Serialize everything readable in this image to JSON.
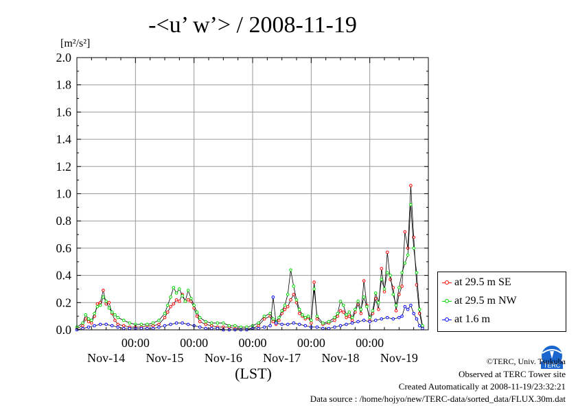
{
  "chart_data": {
    "type": "line",
    "title": "-<u’ w’> / 2008-11-19",
    "ylabel_unit": "[m²/s²]",
    "xlabel": "(LST)",
    "ylim": [
      0,
      2.0
    ],
    "yticks": [
      "0.0",
      "0.2",
      "0.4",
      "0.6",
      "0.8",
      "1.0",
      "1.2",
      "1.4",
      "1.6",
      "1.8",
      "2.0"
    ],
    "xlim": [
      0,
      6
    ],
    "xtick_times": [
      "00:00",
      "00:00",
      "00:00",
      "00:00",
      "00:00"
    ],
    "day_labels": [
      "Nov-14",
      "Nov-15",
      "Nov-16",
      "Nov-17",
      "Nov-18",
      "Nov-19"
    ],
    "grid": true,
    "legend_position": "right",
    "series": [
      {
        "name": "at 29.5 m SE",
        "color": "#ff0000",
        "points": [
          [
            0.0,
            0.01
          ],
          [
            0.1,
            0.03
          ],
          [
            0.15,
            0.08
          ],
          [
            0.2,
            0.06
          ],
          [
            0.25,
            0.05
          ],
          [
            0.3,
            0.1
          ],
          [
            0.35,
            0.19
          ],
          [
            0.4,
            0.2
          ],
          [
            0.45,
            0.29
          ],
          [
            0.5,
            0.19
          ],
          [
            0.55,
            0.2
          ],
          [
            0.6,
            0.12
          ],
          [
            0.65,
            0.07
          ],
          [
            0.7,
            0.04
          ],
          [
            0.8,
            0.03
          ],
          [
            0.9,
            0.02
          ],
          [
            1.0,
            0.02
          ],
          [
            1.1,
            0.02
          ],
          [
            1.2,
            0.03
          ],
          [
            1.3,
            0.03
          ],
          [
            1.4,
            0.04
          ],
          [
            1.5,
            0.09
          ],
          [
            1.55,
            0.13
          ],
          [
            1.6,
            0.17
          ],
          [
            1.65,
            0.19
          ],
          [
            1.7,
            0.22
          ],
          [
            1.75,
            0.21
          ],
          [
            1.8,
            0.26
          ],
          [
            1.85,
            0.21
          ],
          [
            1.9,
            0.22
          ],
          [
            1.95,
            0.21
          ],
          [
            2.0,
            0.16
          ],
          [
            2.05,
            0.1
          ],
          [
            2.1,
            0.06
          ],
          [
            2.2,
            0.04
          ],
          [
            2.3,
            0.03
          ],
          [
            2.4,
            0.02
          ],
          [
            2.5,
            0.02
          ],
          [
            2.6,
            0.02
          ],
          [
            2.7,
            0.01
          ],
          [
            2.8,
            0.01
          ],
          [
            2.9,
            0.01
          ],
          [
            3.0,
            0.01
          ],
          [
            3.1,
            0.03
          ],
          [
            3.2,
            0.08
          ],
          [
            3.3,
            0.1
          ],
          [
            3.35,
            0.06
          ],
          [
            3.4,
            0.04
          ],
          [
            3.45,
            0.07
          ],
          [
            3.5,
            0.12
          ],
          [
            3.55,
            0.15
          ],
          [
            3.6,
            0.17
          ],
          [
            3.65,
            0.22
          ],
          [
            3.7,
            0.26
          ],
          [
            3.75,
            0.2
          ],
          [
            3.8,
            0.12
          ],
          [
            3.85,
            0.1
          ],
          [
            3.9,
            0.08
          ],
          [
            3.95,
            0.09
          ],
          [
            4.0,
            0.05
          ],
          [
            4.05,
            0.35
          ],
          [
            4.1,
            0.08
          ],
          [
            4.2,
            0.04
          ],
          [
            4.3,
            0.05
          ],
          [
            4.4,
            0.07
          ],
          [
            4.45,
            0.1
          ],
          [
            4.5,
            0.14
          ],
          [
            4.55,
            0.13
          ],
          [
            4.6,
            0.09
          ],
          [
            4.65,
            0.1
          ],
          [
            4.7,
            0.07
          ],
          [
            4.75,
            0.13
          ],
          [
            4.8,
            0.19
          ],
          [
            4.85,
            0.12
          ],
          [
            4.9,
            0.36
          ],
          [
            4.95,
            0.18
          ],
          [
            5.0,
            0.07
          ],
          [
            5.05,
            0.12
          ],
          [
            5.1,
            0.23
          ],
          [
            5.15,
            0.15
          ],
          [
            5.2,
            0.45
          ],
          [
            5.25,
            0.28
          ],
          [
            5.3,
            0.57
          ],
          [
            5.35,
            0.37
          ],
          [
            5.4,
            0.31
          ],
          [
            5.45,
            0.14
          ],
          [
            5.5,
            0.26
          ],
          [
            5.55,
            0.32
          ],
          [
            5.6,
            0.72
          ],
          [
            5.65,
            0.6
          ],
          [
            5.7,
            1.06
          ],
          [
            5.75,
            0.68
          ],
          [
            5.8,
            0.33
          ],
          [
            5.85,
            0.12
          ],
          [
            5.9,
            0.02
          ]
        ]
      },
      {
        "name": "at 29.5 m NW",
        "color": "#00dd00",
        "points": [
          [
            0.0,
            0.02
          ],
          [
            0.1,
            0.05
          ],
          [
            0.15,
            0.11
          ],
          [
            0.2,
            0.08
          ],
          [
            0.25,
            0.07
          ],
          [
            0.3,
            0.12
          ],
          [
            0.35,
            0.17
          ],
          [
            0.4,
            0.18
          ],
          [
            0.45,
            0.24
          ],
          [
            0.5,
            0.21
          ],
          [
            0.55,
            0.16
          ],
          [
            0.6,
            0.13
          ],
          [
            0.65,
            0.11
          ],
          [
            0.7,
            0.09
          ],
          [
            0.8,
            0.07
          ],
          [
            0.9,
            0.05
          ],
          [
            1.0,
            0.04
          ],
          [
            1.1,
            0.04
          ],
          [
            1.2,
            0.04
          ],
          [
            1.3,
            0.05
          ],
          [
            1.4,
            0.07
          ],
          [
            1.5,
            0.12
          ],
          [
            1.55,
            0.18
          ],
          [
            1.6,
            0.24
          ],
          [
            1.65,
            0.31
          ],
          [
            1.7,
            0.27
          ],
          [
            1.75,
            0.3
          ],
          [
            1.8,
            0.25
          ],
          [
            1.85,
            0.21
          ],
          [
            1.9,
            0.29
          ],
          [
            1.95,
            0.23
          ],
          [
            2.0,
            0.18
          ],
          [
            2.05,
            0.13
          ],
          [
            2.1,
            0.09
          ],
          [
            2.2,
            0.06
          ],
          [
            2.3,
            0.05
          ],
          [
            2.4,
            0.05
          ],
          [
            2.5,
            0.05
          ],
          [
            2.6,
            0.03
          ],
          [
            2.7,
            0.03
          ],
          [
            2.8,
            0.02
          ],
          [
            2.9,
            0.02
          ],
          [
            3.0,
            0.03
          ],
          [
            3.1,
            0.05
          ],
          [
            3.2,
            0.1
          ],
          [
            3.3,
            0.12
          ],
          [
            3.35,
            0.08
          ],
          [
            3.4,
            0.06
          ],
          [
            3.45,
            0.09
          ],
          [
            3.5,
            0.14
          ],
          [
            3.55,
            0.18
          ],
          [
            3.6,
            0.26
          ],
          [
            3.65,
            0.44
          ],
          [
            3.7,
            0.32
          ],
          [
            3.75,
            0.22
          ],
          [
            3.8,
            0.15
          ],
          [
            3.85,
            0.11
          ],
          [
            3.9,
            0.09
          ],
          [
            3.95,
            0.1
          ],
          [
            4.0,
            0.07
          ],
          [
            4.05,
            0.3
          ],
          [
            4.1,
            0.1
          ],
          [
            4.2,
            0.05
          ],
          [
            4.3,
            0.06
          ],
          [
            4.4,
            0.09
          ],
          [
            4.45,
            0.12
          ],
          [
            4.5,
            0.21
          ],
          [
            4.55,
            0.18
          ],
          [
            4.6,
            0.11
          ],
          [
            4.65,
            0.13
          ],
          [
            4.7,
            0.09
          ],
          [
            4.75,
            0.15
          ],
          [
            4.8,
            0.21
          ],
          [
            4.85,
            0.15
          ],
          [
            4.9,
            0.24
          ],
          [
            4.95,
            0.17
          ],
          [
            5.0,
            0.09
          ],
          [
            5.05,
            0.14
          ],
          [
            5.1,
            0.27
          ],
          [
            5.15,
            0.2
          ],
          [
            5.2,
            0.37
          ],
          [
            5.25,
            0.3
          ],
          [
            5.3,
            0.42
          ],
          [
            5.35,
            0.4
          ],
          [
            5.4,
            0.26
          ],
          [
            5.45,
            0.18
          ],
          [
            5.5,
            0.31
          ],
          [
            5.55,
            0.42
          ],
          [
            5.6,
            0.49
          ],
          [
            5.65,
            0.55
          ],
          [
            5.7,
            0.92
          ],
          [
            5.75,
            0.6
          ],
          [
            5.8,
            0.42
          ],
          [
            5.85,
            0.15
          ],
          [
            5.9,
            0.03
          ]
        ]
      },
      {
        "name": "at 1.6 m",
        "color": "#0000ff",
        "points": [
          [
            0.0,
            0.0
          ],
          [
            0.1,
            0.01
          ],
          [
            0.2,
            0.02
          ],
          [
            0.3,
            0.03
          ],
          [
            0.4,
            0.04
          ],
          [
            0.5,
            0.04
          ],
          [
            0.6,
            0.03
          ],
          [
            0.7,
            0.02
          ],
          [
            0.8,
            0.01
          ],
          [
            0.9,
            0.01
          ],
          [
            1.0,
            0.01
          ],
          [
            1.1,
            0.01
          ],
          [
            1.2,
            0.01
          ],
          [
            1.3,
            0.01
          ],
          [
            1.4,
            0.02
          ],
          [
            1.5,
            0.03
          ],
          [
            1.6,
            0.04
          ],
          [
            1.7,
            0.05
          ],
          [
            1.8,
            0.05
          ],
          [
            1.9,
            0.04
          ],
          [
            2.0,
            0.03
          ],
          [
            2.1,
            0.02
          ],
          [
            2.2,
            0.01
          ],
          [
            2.3,
            0.01
          ],
          [
            2.4,
            0.01
          ],
          [
            2.5,
            0.0
          ],
          [
            2.6,
            0.0
          ],
          [
            2.7,
            0.0
          ],
          [
            2.8,
            0.0
          ],
          [
            2.9,
            0.0
          ],
          [
            3.0,
            0.01
          ],
          [
            3.1,
            0.01
          ],
          [
            3.2,
            0.02
          ],
          [
            3.3,
            0.03
          ],
          [
            3.35,
            0.24
          ],
          [
            3.4,
            0.05
          ],
          [
            3.5,
            0.04
          ],
          [
            3.6,
            0.04
          ],
          [
            3.7,
            0.05
          ],
          [
            3.8,
            0.04
          ],
          [
            3.9,
            0.03
          ],
          [
            4.0,
            0.02
          ],
          [
            4.1,
            0.02
          ],
          [
            4.2,
            0.01
          ],
          [
            4.3,
            0.01
          ],
          [
            4.4,
            0.02
          ],
          [
            4.5,
            0.03
          ],
          [
            4.6,
            0.04
          ],
          [
            4.7,
            0.05
          ],
          [
            4.8,
            0.06
          ],
          [
            4.9,
            0.07
          ],
          [
            5.0,
            0.06
          ],
          [
            5.1,
            0.07
          ],
          [
            5.2,
            0.08
          ],
          [
            5.3,
            0.09
          ],
          [
            5.4,
            0.08
          ],
          [
            5.5,
            0.09
          ],
          [
            5.55,
            0.1
          ],
          [
            5.6,
            0.17
          ],
          [
            5.65,
            0.15
          ],
          [
            5.7,
            0.18
          ],
          [
            5.75,
            0.12
          ],
          [
            5.8,
            0.08
          ],
          [
            5.85,
            0.03
          ],
          [
            5.9,
            0.01
          ]
        ]
      }
    ]
  },
  "footer": {
    "copyright": "©TERC, Univ. Tsukuba",
    "observed": "Observed at TERC Tower site",
    "created": "Created Automatically at 2008-11-19/23:32:21",
    "source": "Data source : /home/hojyo/new/TERC-data/sorted_data/FLUX.30m.dat"
  },
  "logo": {
    "text": "TERC",
    "color": "#1a66cc"
  }
}
